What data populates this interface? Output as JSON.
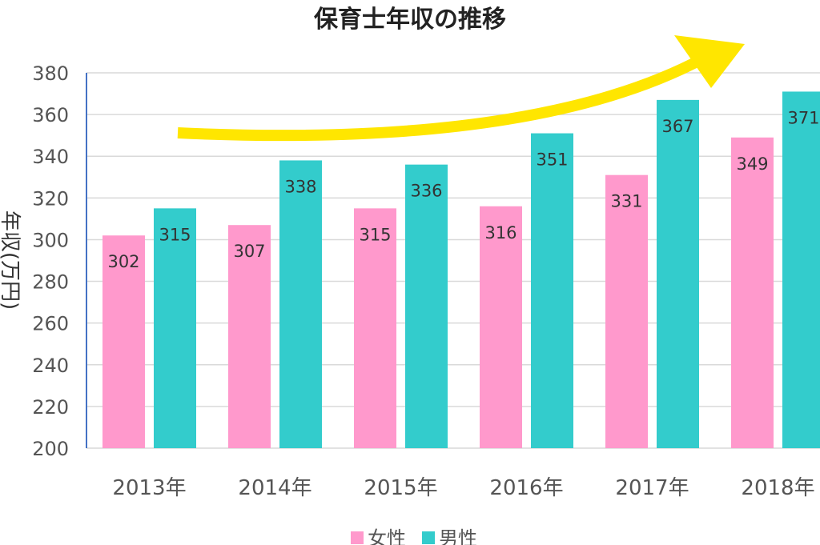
{
  "chart_data": {
    "type": "bar",
    "title": "保育士年収の推移",
    "ylabel": "年収(万円)",
    "categories": [
      "2013年",
      "2014年",
      "2015年",
      "2016年",
      "2017年",
      "2018年"
    ],
    "series": [
      {
        "name": "女性",
        "color": "#ff99cc",
        "values": [
          302,
          307,
          315,
          316,
          331,
          349
        ]
      },
      {
        "name": "男性",
        "color": "#33cccc",
        "values": [
          315,
          338,
          336,
          351,
          367,
          371
        ]
      }
    ],
    "ylim": [
      200,
      380
    ],
    "yticks": [
      200,
      220,
      240,
      260,
      280,
      300,
      320,
      340,
      360,
      380
    ],
    "grid": true,
    "legend": "bottom",
    "annotation": {
      "type": "arrow",
      "color": "#ffe600",
      "direction": "up-right"
    }
  }
}
